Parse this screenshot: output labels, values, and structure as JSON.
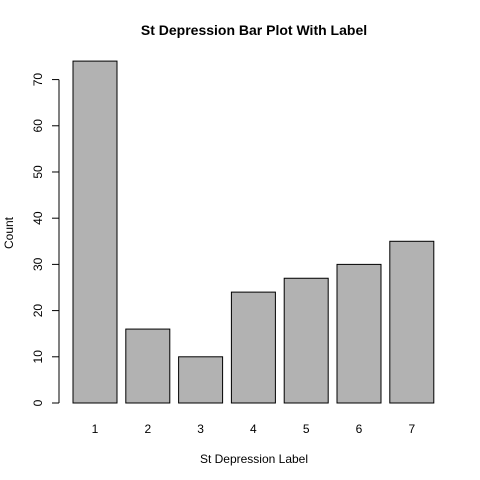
{
  "chart_data": {
    "type": "bar",
    "title": "St Depression Bar Plot With Label",
    "xlabel": "St Depression Label",
    "ylabel": "Count",
    "categories": [
      "1",
      "2",
      "3",
      "4",
      "5",
      "6",
      "7"
    ],
    "values": [
      74,
      16,
      10,
      24,
      27,
      30,
      35
    ],
    "ylim": [
      0,
      77.7
    ],
    "yticks": [
      "0",
      "10",
      "20",
      "30",
      "40",
      "50",
      "60",
      "70"
    ],
    "bar_color": "#b2b2b2",
    "bar_stroke": "#000000",
    "grid": false,
    "legend": "none"
  }
}
